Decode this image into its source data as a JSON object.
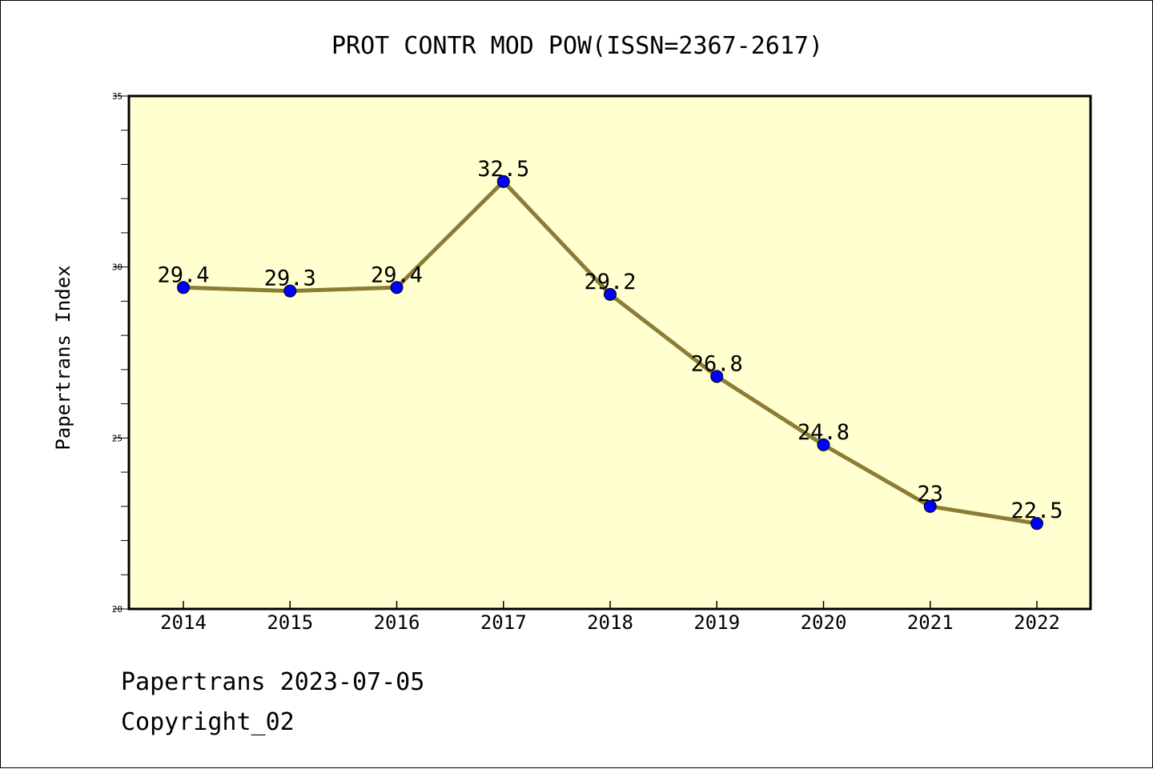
{
  "footer": {
    "date_line": "Papertrans 2023-07-05",
    "copyright": "Copyright_02"
  },
  "colors": {
    "plot_background": "#ffffd0",
    "line": "#8b7d35",
    "marker": "#0000ff",
    "text": "#000000"
  },
  "chart_data": {
    "type": "line",
    "title": "PROT CONTR MOD POW(ISSN=2367-2617)",
    "xlabel": "",
    "ylabel": "Papertrans Index",
    "categories": [
      "2014",
      "2015",
      "2016",
      "2017",
      "2018",
      "2019",
      "2020",
      "2021",
      "2022"
    ],
    "series": [
      {
        "values": [
          29.4,
          29.3,
          29.4,
          32.5,
          29.2,
          26.8,
          24.8,
          23,
          22.5
        ],
        "labels": [
          "29.4",
          "29.3",
          "29.4",
          "32.5",
          "29.2",
          "26.8",
          "24.8",
          "23",
          "22.5"
        ]
      }
    ],
    "ylim": [
      20,
      35
    ],
    "yticks": [
      20,
      25,
      30,
      35
    ],
    "ytick_labels": [
      "20",
      "25",
      "30",
      "35"
    ],
    "grid": false,
    "legend": "none"
  }
}
